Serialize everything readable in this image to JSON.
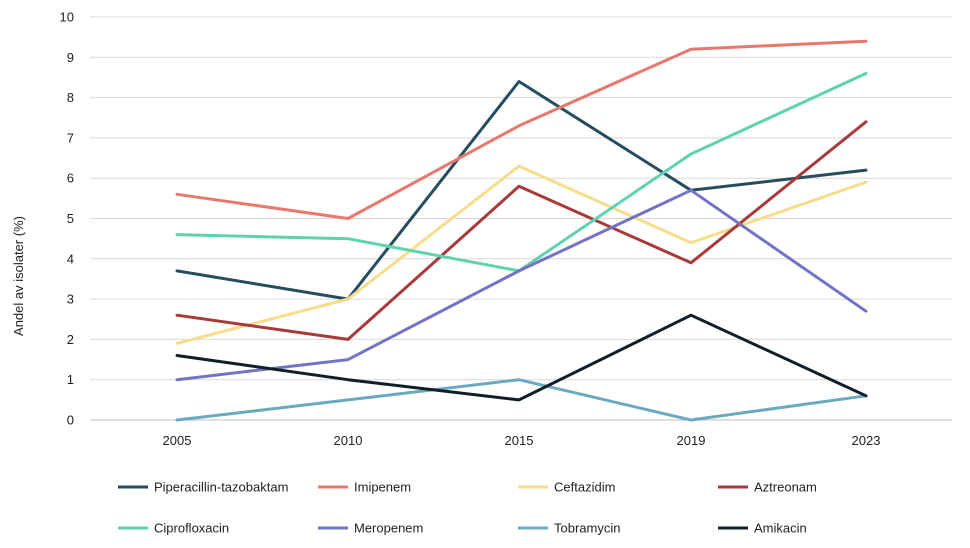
{
  "chart_data": {
    "type": "line",
    "x": [
      "2005",
      "2010",
      "2015",
      "2019",
      "2023"
    ],
    "ylabel": "Andel av isolater (%)",
    "xlabel": "",
    "ylim": [
      0,
      10
    ],
    "yticks": [
      0,
      1,
      2,
      3,
      4,
      5,
      6,
      7,
      8,
      9,
      10
    ],
    "grid": true,
    "legend_position": "bottom",
    "series": [
      {
        "name": "Piperacillin-tazobaktam",
        "color": "#264d5e",
        "values": [
          3.7,
          3.0,
          8.4,
          5.7,
          6.2
        ]
      },
      {
        "name": "Imipenem",
        "color": "#e8786e",
        "values": [
          5.6,
          5.0,
          7.3,
          9.2,
          9.4
        ]
      },
      {
        "name": "Ceftazidim",
        "color": "#f7dc8a",
        "values": [
          1.9,
          3.0,
          6.3,
          4.4,
          5.9
        ]
      },
      {
        "name": "Aztreonam",
        "color": "#a83a3a",
        "values": [
          2.6,
          2.0,
          5.8,
          3.9,
          7.4
        ]
      },
      {
        "name": "Ciprofloxacin",
        "color": "#5fd3b0",
        "values": [
          4.6,
          4.5,
          3.7,
          6.6,
          8.6
        ]
      },
      {
        "name": "Meropenem",
        "color": "#7373c6",
        "values": [
          1.0,
          1.5,
          3.7,
          5.7,
          2.7
        ]
      },
      {
        "name": "Tobramycin",
        "color": "#6ba8c2",
        "values": [
          0.0,
          0.5,
          1.0,
          0.0,
          0.6
        ]
      },
      {
        "name": "Amikacin",
        "color": "#0f1f26",
        "values": [
          1.6,
          1.0,
          0.5,
          2.6,
          0.6
        ]
      }
    ]
  }
}
